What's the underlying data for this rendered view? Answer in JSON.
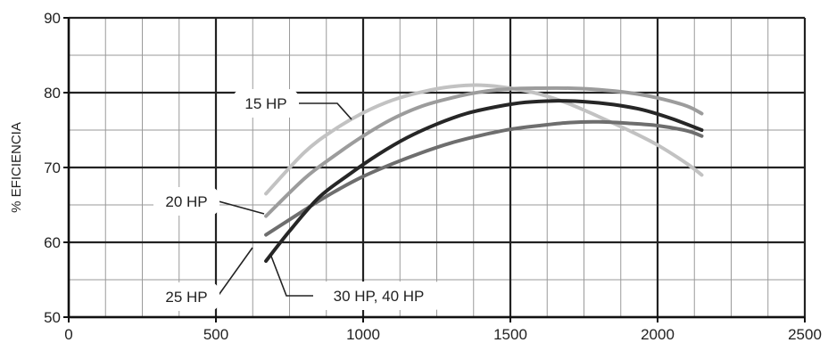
{
  "chart_data": {
    "type": "line",
    "title": "",
    "xlabel": "",
    "ylabel": "% EFICIENCIA",
    "xlim": [
      0,
      2500
    ],
    "ylim": [
      50,
      90
    ],
    "x_major_ticks": [
      0,
      500,
      1000,
      1500,
      2000,
      2500
    ],
    "y_major_ticks": [
      50,
      60,
      70,
      80,
      90
    ],
    "x_minor_step": 125,
    "y_minor_step": 5,
    "grid": true,
    "legend": "none (series labelled by callouts on the plot)",
    "series": [
      {
        "name": "15 HP",
        "color": "#c2c2c2",
        "points": [
          [
            670,
            66.5
          ],
          [
            800,
            72
          ],
          [
            900,
            75
          ],
          [
            1000,
            77.3
          ],
          [
            1100,
            79
          ],
          [
            1200,
            80.1
          ],
          [
            1300,
            80.8
          ],
          [
            1400,
            81
          ],
          [
            1500,
            80.6
          ],
          [
            1600,
            79.8
          ],
          [
            1700,
            78.5
          ],
          [
            1800,
            76.8
          ],
          [
            1900,
            75
          ],
          [
            2000,
            73
          ],
          [
            2100,
            70.5
          ],
          [
            2150,
            69
          ]
        ]
      },
      {
        "name": "20 HP",
        "color": "#9c9c9c",
        "points": [
          [
            670,
            63.5
          ],
          [
            800,
            68.5
          ],
          [
            900,
            71.5
          ],
          [
            1000,
            74.2
          ],
          [
            1100,
            76.5
          ],
          [
            1200,
            78.2
          ],
          [
            1300,
            79.3
          ],
          [
            1400,
            80.1
          ],
          [
            1500,
            80.5
          ],
          [
            1600,
            80.6
          ],
          [
            1700,
            80.6
          ],
          [
            1800,
            80.4
          ],
          [
            1900,
            80
          ],
          [
            2000,
            79.3
          ],
          [
            2100,
            78.2
          ],
          [
            2150,
            77.2
          ]
        ]
      },
      {
        "name": "25 HP",
        "color": "#6e6e6e",
        "points": [
          [
            670,
            61
          ],
          [
            800,
            64.3
          ],
          [
            900,
            66.7
          ],
          [
            1000,
            68.8
          ],
          [
            1100,
            70.5
          ],
          [
            1200,
            72
          ],
          [
            1300,
            73.3
          ],
          [
            1400,
            74.3
          ],
          [
            1500,
            75.1
          ],
          [
            1600,
            75.6
          ],
          [
            1700,
            76
          ],
          [
            1800,
            76.1
          ],
          [
            1900,
            75.9
          ],
          [
            2000,
            75.6
          ],
          [
            2100,
            74.9
          ],
          [
            2150,
            74.2
          ]
        ]
      },
      {
        "name": "30 HP, 40 HP",
        "color": "#262626",
        "points": [
          [
            670,
            57.5
          ],
          [
            750,
            61.5
          ],
          [
            850,
            66
          ],
          [
            950,
            69
          ],
          [
            1050,
            71.7
          ],
          [
            1150,
            74
          ],
          [
            1250,
            75.8
          ],
          [
            1350,
            77.2
          ],
          [
            1450,
            78.1
          ],
          [
            1550,
            78.7
          ],
          [
            1650,
            78.9
          ],
          [
            1750,
            78.8
          ],
          [
            1850,
            78.4
          ],
          [
            1950,
            77.7
          ],
          [
            2050,
            76.5
          ],
          [
            2150,
            75
          ]
        ]
      }
    ],
    "annotations": [
      {
        "text": "15 HP",
        "pointer_to": "15 HP"
      },
      {
        "text": "20 HP",
        "pointer_to": "20 HP"
      },
      {
        "text": "25 HP",
        "pointer_to": "25 HP"
      },
      {
        "text": "30 HP, 40 HP",
        "pointer_to": "30 HP, 40 HP"
      }
    ]
  }
}
